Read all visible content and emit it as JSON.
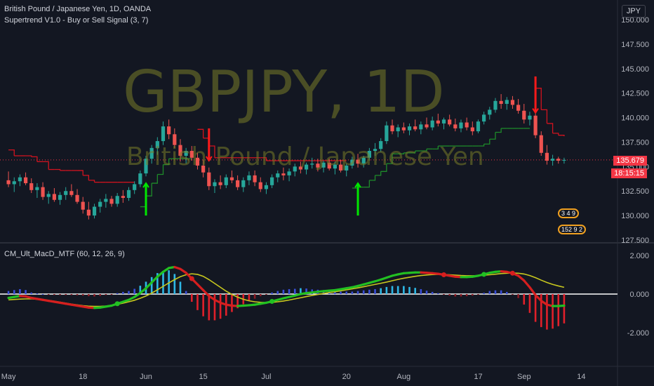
{
  "header": {
    "symbol_title": "British Pound / Japanese Yen, 1D, OANDA",
    "indicator_1": "Supertrend V1.0 - Buy or Sell Signal (3, 7)",
    "indicator_2": "CM_Ult_MacD_MTF (60, 12, 26, 9)",
    "currency_button": "JPY"
  },
  "watermark": {
    "main": "GBPJPY, 1D",
    "sub": "British Pound / Japanese Yen"
  },
  "price_tags": {
    "last_price": "135.679",
    "countdown": "18:15:15"
  },
  "badges": {
    "upper": "3 4 9",
    "lower": "152 9 2"
  },
  "colors": {
    "background": "#131722",
    "up_candle": "#26a69a",
    "down_candle": "#ef5350",
    "supertrend_up": "#1e8b2a",
    "supertrend_down": "#d2131f",
    "buy_arrow": "#00e600",
    "sell_arrow": "#ff1a1a",
    "macd_fast_up": "#22c022",
    "macd_fast_down": "#d61f1f",
    "macd_signal": "#c8c81e",
    "price_tag": "#f23645"
  },
  "chart_data": {
    "type": "candlestick",
    "price_axis": {
      "ticks": [
        "150.000",
        "147.500",
        "145.000",
        "142.500",
        "140.000",
        "137.500",
        "135.000",
        "132.500",
        "130.000",
        "127.500"
      ],
      "ylim": [
        127.5,
        150.0
      ]
    },
    "macd_axis": {
      "ticks": [
        "2.000",
        "0.000",
        "-2.000"
      ],
      "ylim": [
        -3.0,
        2.8
      ]
    },
    "time_axis": {
      "labels": [
        "May",
        "18",
        "Jun",
        "15",
        "Jul",
        "20",
        "Aug",
        "17",
        "Sep",
        "14"
      ]
    },
    "candles": [
      [
        133.6,
        134.5,
        132.9,
        133.2
      ],
      [
        133.2,
        133.9,
        132.4,
        133.5
      ],
      [
        133.5,
        134.2,
        133.0,
        133.9
      ],
      [
        133.9,
        134.4,
        133.1,
        133.3
      ],
      [
        133.3,
        133.8,
        132.3,
        132.6
      ],
      [
        132.6,
        133.3,
        131.8,
        132.9
      ],
      [
        132.9,
        133.4,
        131.6,
        131.9
      ],
      [
        131.9,
        132.5,
        131.2,
        132.2
      ],
      [
        132.2,
        132.8,
        131.4,
        131.6
      ],
      [
        131.6,
        132.4,
        131.1,
        132.1
      ],
      [
        132.1,
        132.9,
        131.6,
        132.5
      ],
      [
        132.5,
        133.2,
        131.9,
        132.1
      ],
      [
        132.1,
        132.7,
        131.2,
        131.4
      ],
      [
        131.4,
        131.9,
        130.2,
        130.6
      ],
      [
        130.6,
        131.4,
        129.6,
        130.0
      ],
      [
        130.0,
        131.2,
        129.7,
        130.9
      ],
      [
        130.9,
        131.7,
        130.3,
        131.4
      ],
      [
        131.4,
        132.2,
        130.8,
        131.7
      ],
      [
        131.7,
        132.0,
        130.9,
        131.2
      ],
      [
        131.2,
        132.3,
        130.9,
        132.0
      ],
      [
        132.0,
        132.6,
        131.3,
        131.8
      ],
      [
        131.8,
        132.9,
        131.5,
        132.6
      ],
      [
        132.6,
        133.5,
        132.2,
        133.2
      ],
      [
        133.2,
        134.6,
        132.9,
        134.3
      ],
      [
        134.3,
        136.1,
        134.0,
        135.8
      ],
      [
        135.8,
        137.2,
        135.3,
        136.9
      ],
      [
        136.9,
        138.0,
        136.2,
        137.6
      ],
      [
        137.6,
        139.6,
        137.2,
        139.1
      ],
      [
        139.1,
        139.8,
        137.8,
        138.3
      ],
      [
        138.3,
        138.9,
        136.9,
        137.2
      ],
      [
        137.2,
        137.8,
        135.5,
        136.1
      ],
      [
        136.1,
        136.9,
        135.3,
        136.6
      ],
      [
        136.6,
        137.1,
        135.6,
        135.9
      ],
      [
        135.9,
        136.4,
        134.7,
        135.1
      ],
      [
        135.1,
        135.7,
        133.9,
        134.4
      ],
      [
        134.4,
        134.9,
        132.6,
        133.0
      ],
      [
        133.0,
        133.7,
        132.3,
        133.4
      ],
      [
        133.4,
        134.1,
        132.7,
        133.1
      ],
      [
        133.1,
        134.2,
        132.8,
        133.9
      ],
      [
        133.9,
        134.6,
        133.3,
        133.6
      ],
      [
        133.6,
        134.1,
        132.6,
        132.9
      ],
      [
        132.9,
        133.9,
        132.4,
        133.6
      ],
      [
        133.6,
        134.5,
        133.1,
        134.1
      ],
      [
        134.1,
        134.6,
        133.0,
        133.4
      ],
      [
        133.4,
        133.9,
        132.4,
        132.7
      ],
      [
        132.7,
        133.4,
        132.2,
        133.1
      ],
      [
        133.1,
        134.2,
        132.8,
        133.9
      ],
      [
        133.9,
        134.6,
        133.4,
        134.3
      ],
      [
        134.3,
        134.9,
        133.6,
        134.1
      ],
      [
        134.1,
        134.8,
        133.5,
        134.5
      ],
      [
        134.5,
        135.3,
        134.0,
        135.0
      ],
      [
        135.0,
        135.5,
        134.3,
        134.7
      ],
      [
        134.7,
        135.4,
        134.2,
        135.2
      ],
      [
        135.2,
        135.9,
        134.8,
        135.3
      ],
      [
        135.3,
        135.8,
        134.5,
        134.9
      ],
      [
        134.9,
        135.6,
        134.4,
        135.4
      ],
      [
        135.4,
        135.8,
        134.6,
        134.8
      ],
      [
        134.8,
        135.5,
        134.2,
        135.2
      ],
      [
        135.2,
        135.7,
        134.4,
        134.6
      ],
      [
        134.6,
        135.3,
        134.0,
        135.1
      ],
      [
        135.1,
        136.0,
        134.8,
        135.7
      ],
      [
        135.7,
        136.3,
        134.9,
        135.3
      ],
      [
        135.3,
        136.1,
        134.9,
        135.9
      ],
      [
        135.9,
        136.9,
        135.6,
        136.6
      ],
      [
        136.6,
        137.4,
        136.1,
        136.8
      ],
      [
        136.8,
        137.9,
        136.5,
        137.6
      ],
      [
        137.6,
        139.6,
        137.3,
        139.2
      ],
      [
        139.2,
        139.8,
        138.3,
        138.6
      ],
      [
        138.6,
        139.3,
        138.0,
        139.0
      ],
      [
        139.0,
        139.5,
        138.4,
        138.7
      ],
      [
        138.7,
        139.4,
        138.2,
        139.1
      ],
      [
        139.1,
        139.8,
        138.6,
        138.8
      ],
      [
        138.8,
        139.6,
        138.3,
        139.3
      ],
      [
        139.3,
        140.0,
        138.8,
        139.0
      ],
      [
        139.0,
        140.1,
        138.7,
        139.7
      ],
      [
        139.7,
        140.4,
        139.1,
        139.4
      ],
      [
        139.4,
        140.0,
        138.8,
        139.8
      ],
      [
        139.8,
        140.3,
        139.1,
        139.3
      ],
      [
        139.3,
        139.9,
        138.6,
        138.9
      ],
      [
        138.9,
        139.8,
        138.5,
        139.5
      ],
      [
        139.5,
        140.0,
        138.7,
        139.0
      ],
      [
        139.0,
        139.6,
        138.2,
        138.6
      ],
      [
        138.6,
        139.8,
        138.4,
        139.6
      ],
      [
        139.6,
        140.6,
        139.3,
        140.3
      ],
      [
        140.3,
        141.1,
        139.8,
        140.8
      ],
      [
        140.8,
        142.0,
        140.5,
        141.7
      ],
      [
        141.7,
        142.4,
        140.9,
        141.4
      ],
      [
        141.4,
        142.1,
        140.8,
        141.8
      ],
      [
        141.8,
        142.2,
        140.9,
        141.3
      ],
      [
        141.3,
        141.9,
        140.4,
        140.7
      ],
      [
        140.7,
        141.4,
        139.4,
        139.8
      ],
      [
        139.8,
        140.6,
        139.2,
        140.2
      ],
      [
        140.2,
        140.6,
        137.9,
        138.2
      ],
      [
        138.2,
        138.6,
        136.1,
        136.4
      ],
      [
        136.4,
        137.2,
        135.2,
        135.6
      ],
      [
        135.6,
        136.2,
        135.1,
        135.8
      ],
      [
        135.8,
        136.0,
        135.3,
        135.6
      ],
      [
        135.6,
        135.9,
        135.3,
        135.68
      ]
    ],
    "macd": {
      "fast_line": [
        -0.2,
        -0.15,
        -0.1,
        -0.12,
        -0.2,
        -0.25,
        -0.3,
        -0.35,
        -0.4,
        -0.45,
        -0.5,
        -0.55,
        -0.6,
        -0.65,
        -0.7,
        -0.72,
        -0.7,
        -0.65,
        -0.6,
        -0.5,
        -0.4,
        -0.3,
        -0.15,
        0.05,
        0.3,
        0.6,
        0.9,
        1.15,
        1.35,
        1.4,
        1.3,
        1.1,
        0.8,
        0.5,
        0.2,
        -0.1,
        -0.3,
        -0.45,
        -0.55,
        -0.6,
        -0.62,
        -0.6,
        -0.58,
        -0.55,
        -0.5,
        -0.45,
        -0.38,
        -0.3,
        -0.22,
        -0.15,
        -0.08,
        0.0,
        0.05,
        0.08,
        0.12,
        0.15,
        0.18,
        0.2,
        0.25,
        0.3,
        0.35,
        0.42,
        0.5,
        0.58,
        0.66,
        0.75,
        0.85,
        0.95,
        1.02,
        1.08,
        1.1,
        1.12,
        1.12,
        1.1,
        1.08,
        1.05,
        1.0,
        0.95,
        0.9,
        0.88,
        0.88,
        0.9,
        0.95,
        1.02,
        1.1,
        1.15,
        1.18,
        1.15,
        1.08,
        0.95,
        0.7,
        0.35,
        -0.05,
        -0.35,
        -0.55,
        -0.62,
        -0.62,
        -0.6
      ],
      "signal_line": [
        -0.3,
        -0.28,
        -0.26,
        -0.25,
        -0.25,
        -0.27,
        -0.3,
        -0.33,
        -0.37,
        -0.42,
        -0.47,
        -0.52,
        -0.56,
        -0.6,
        -0.63,
        -0.64,
        -0.64,
        -0.62,
        -0.58,
        -0.53,
        -0.47,
        -0.4,
        -0.32,
        -0.22,
        -0.1,
        0.05,
        0.22,
        0.4,
        0.58,
        0.75,
        0.9,
        1.0,
        1.05,
        1.02,
        0.92,
        0.75,
        0.55,
        0.35,
        0.15,
        -0.02,
        -0.16,
        -0.27,
        -0.35,
        -0.4,
        -0.43,
        -0.44,
        -0.43,
        -0.4,
        -0.36,
        -0.31,
        -0.25,
        -0.19,
        -0.13,
        -0.07,
        -0.02,
        0.03,
        0.08,
        0.12,
        0.17,
        0.22,
        0.27,
        0.32,
        0.38,
        0.44,
        0.5,
        0.56,
        0.62,
        0.69,
        0.76,
        0.82,
        0.87,
        0.92,
        0.96,
        0.99,
        1.01,
        1.02,
        1.02,
        1.0,
        0.98,
        0.96,
        0.95,
        0.95,
        0.96,
        0.98,
        1.0,
        1.03,
        1.06,
        1.08,
        1.09,
        1.08,
        1.04,
        0.96,
        0.85,
        0.72,
        0.6,
        0.5,
        0.42,
        0.35
      ]
    }
  }
}
